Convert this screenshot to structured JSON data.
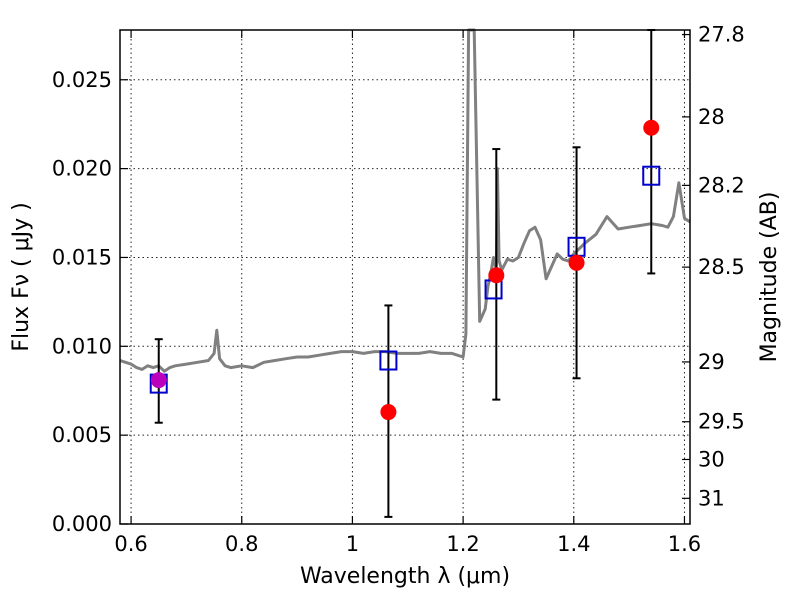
{
  "chart_data": {
    "type": "scatter",
    "title": "",
    "xlabel": "Wavelength  λ (μm)",
    "ylabel": "Flux  Fν  ( μJy )",
    "y2label": "Magnitude (AB)",
    "xlim": [
      0.58,
      1.61
    ],
    "ylim": [
      0.0,
      0.0278
    ],
    "grid": true,
    "x_ticks": [
      {
        "value": 0.6,
        "label": "0.6"
      },
      {
        "value": 0.8,
        "label": "0.8"
      },
      {
        "value": 1.0,
        "label": "1"
      },
      {
        "value": 1.2,
        "label": "1.2"
      },
      {
        "value": 1.4,
        "label": "1.4"
      },
      {
        "value": 1.6,
        "label": "1.6"
      }
    ],
    "y_ticks": [
      {
        "value": 0.0,
        "label": "0.000"
      },
      {
        "value": 0.005,
        "label": "0.005"
      },
      {
        "value": 0.01,
        "label": "0.010"
      },
      {
        "value": 0.015,
        "label": "0.015"
      },
      {
        "value": 0.02,
        "label": "0.020"
      },
      {
        "value": 0.025,
        "label": "0.025"
      }
    ],
    "y2_ticks": [
      {
        "value": 27.8,
        "label": "27.8"
      },
      {
        "value": 28.0,
        "label": "28"
      },
      {
        "value": 28.2,
        "label": "28.2"
      },
      {
        "value": 28.5,
        "label": "28.5"
      },
      {
        "value": 29.0,
        "label": "29"
      },
      {
        "value": 29.5,
        "label": "29.5"
      },
      {
        "value": 30.0,
        "label": "30"
      },
      {
        "value": 31.0,
        "label": "31"
      }
    ],
    "colors": {
      "spectrum": "#808080",
      "observed": "#ff0000",
      "model": "#0000cc",
      "errorbar": "#000000",
      "overlap": "#bb00bb"
    },
    "spectrum": {
      "name": "",
      "x": [
        0.58,
        0.59,
        0.6,
        0.61,
        0.62,
        0.63,
        0.64,
        0.65,
        0.66,
        0.67,
        0.68,
        0.7,
        0.72,
        0.74,
        0.75,
        0.755,
        0.76,
        0.77,
        0.78,
        0.8,
        0.82,
        0.84,
        0.86,
        0.88,
        0.9,
        0.92,
        0.94,
        0.96,
        0.98,
        1.0,
        1.02,
        1.04,
        1.06,
        1.08,
        1.1,
        1.12,
        1.14,
        1.16,
        1.18,
        1.2,
        1.205,
        1.21,
        1.215,
        1.22,
        1.23,
        1.24,
        1.245,
        1.25,
        1.255,
        1.26,
        1.262,
        1.265,
        1.27,
        1.28,
        1.29,
        1.3,
        1.31,
        1.32,
        1.33,
        1.34,
        1.35,
        1.36,
        1.37,
        1.38,
        1.39,
        1.4,
        1.42,
        1.44,
        1.46,
        1.48,
        1.5,
        1.52,
        1.54,
        1.56,
        1.57,
        1.58,
        1.59,
        1.6,
        1.61
      ],
      "y": [
        0.0092,
        0.0091,
        0.009,
        0.0088,
        0.0087,
        0.0089,
        0.0088,
        0.0089,
        0.0086,
        0.0088,
        0.0089,
        0.009,
        0.0091,
        0.0092,
        0.0096,
        0.0109,
        0.0093,
        0.0089,
        0.0088,
        0.0089,
        0.0088,
        0.0091,
        0.0092,
        0.0093,
        0.0094,
        0.0094,
        0.0095,
        0.0096,
        0.0097,
        0.0097,
        0.0096,
        0.0097,
        0.0097,
        0.0096,
        0.0096,
        0.0096,
        0.0097,
        0.0096,
        0.0096,
        0.0094,
        0.0107,
        0.028,
        0.028,
        0.028,
        0.0114,
        0.0121,
        0.0134,
        0.0141,
        0.015,
        0.0143,
        0.02,
        0.0148,
        0.0143,
        0.0149,
        0.0148,
        0.015,
        0.0158,
        0.0165,
        0.0167,
        0.016,
        0.0138,
        0.0145,
        0.0152,
        0.0149,
        0.0148,
        0.0152,
        0.0158,
        0.0163,
        0.0173,
        0.0166,
        0.0167,
        0.0168,
        0.0169,
        0.0168,
        0.0167,
        0.0173,
        0.0192,
        0.0172,
        0.017
      ]
    },
    "series": [
      {
        "name": "",
        "marker": "circle",
        "x": [
          0.65,
          1.065,
          1.26,
          1.405,
          1.54
        ],
        "y": [
          0.0081,
          0.0063,
          0.014,
          0.0147,
          0.0223
        ],
        "yerr_low": [
          0.0057,
          0.0004,
          0.007,
          0.0082,
          0.0141
        ],
        "yerr_high": [
          0.0104,
          0.0123,
          0.0211,
          0.0212,
          0.0278
        ]
      },
      {
        "name": "",
        "marker": "square",
        "x": [
          0.65,
          1.065,
          1.255,
          1.405,
          1.54
        ],
        "y": [
          0.0079,
          0.0092,
          0.0132,
          0.0156,
          0.0196
        ]
      }
    ]
  }
}
